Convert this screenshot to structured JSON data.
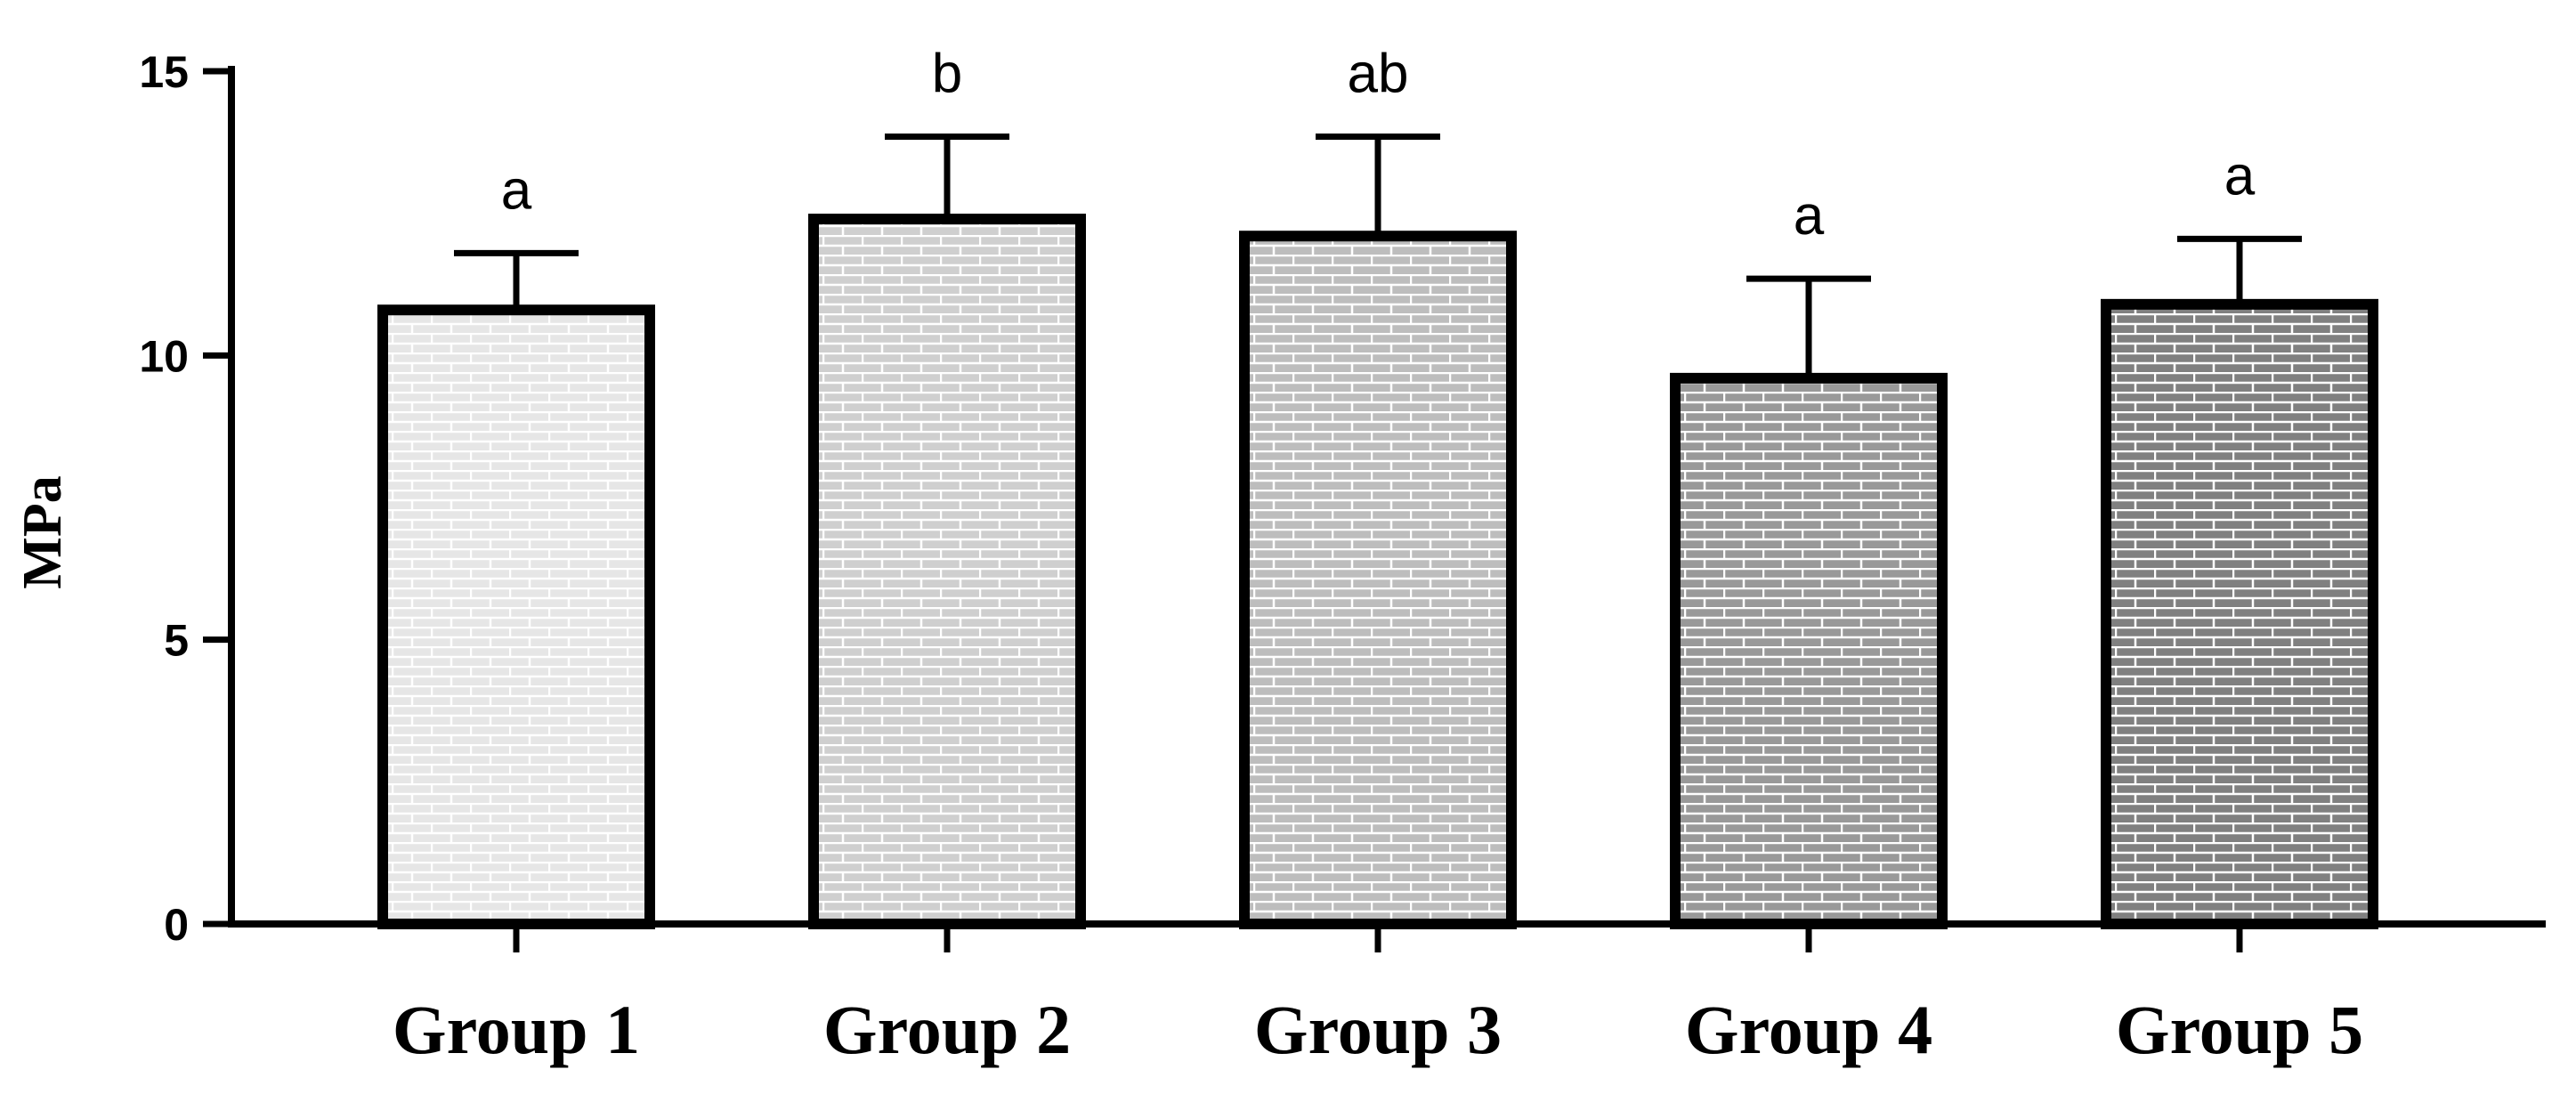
{
  "chart_data": {
    "type": "bar",
    "title": "",
    "xlabel": "",
    "ylabel": "MPa",
    "ylim": [
      0,
      15
    ],
    "yticks": [
      0,
      5,
      10,
      15
    ],
    "grid": false,
    "categories": [
      "Group 1",
      "Group 2",
      "Group 3",
      "Group 4",
      "Group 5"
    ],
    "values": [
      10.8,
      12.4,
      12.1,
      9.6,
      10.9
    ],
    "errors": [
      1.0,
      1.45,
      1.75,
      1.75,
      1.15
    ],
    "significance_labels": [
      "a",
      "b",
      "ab",
      "a",
      "a"
    ],
    "bar_fills": [
      "#e6e6e6",
      "#cfcfcf",
      "#bdbdbd",
      "#999999",
      "#808080"
    ],
    "brick_color": "#ffffff",
    "axis_color": "#000000"
  }
}
